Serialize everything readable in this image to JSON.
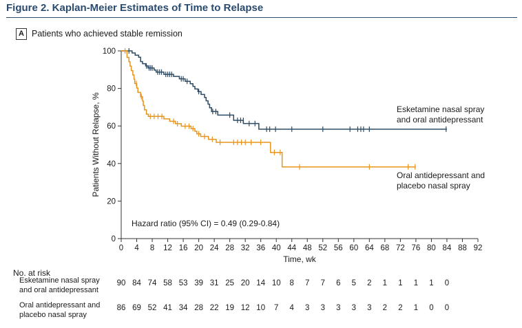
{
  "figure": {
    "title": "Figure 2. Kaplan-Meier Estimates of Time to Relapse",
    "panel_letter": "A",
    "panel_title": "Patients who achieved stable remission"
  },
  "chart_data": {
    "type": "line",
    "subtype": "kaplan-meier",
    "xlabel": "Time, wk",
    "ylabel": "Patients Without Relapse, %",
    "xlim": [
      0,
      92
    ],
    "ylim": [
      0,
      100
    ],
    "xticks": [
      0,
      4,
      8,
      12,
      16,
      20,
      24,
      28,
      32,
      36,
      40,
      44,
      48,
      52,
      56,
      60,
      64,
      68,
      72,
      76,
      80,
      84,
      88,
      92
    ],
    "yticks": [
      0,
      20,
      40,
      60,
      80,
      100
    ],
    "annotation": "Hazard ratio (95% CI) = 0.49 (0.29-0.84)",
    "series": [
      {
        "name": "Esketamine nasal spray and oral antidepressant",
        "label_lines": [
          "Esketamine nasal spray",
          "and oral antidepressant"
        ],
        "color": "#2c4a63",
        "steps": [
          [
            0,
            100
          ],
          [
            2.8,
            98.9
          ],
          [
            3.6,
            97.7
          ],
          [
            4.5,
            96.6
          ],
          [
            5.0,
            94.3
          ],
          [
            5.5,
            93.2
          ],
          [
            6.3,
            92.0
          ],
          [
            6.9,
            90.9
          ],
          [
            8.5,
            89.8
          ],
          [
            9.0,
            88.7
          ],
          [
            11.0,
            87.5
          ],
          [
            13.5,
            86.4
          ],
          [
            15.0,
            85.1
          ],
          [
            16.5,
            83.8
          ],
          [
            17.8,
            82.5
          ],
          [
            18.5,
            81.1
          ],
          [
            19.0,
            79.7
          ],
          [
            19.8,
            78.3
          ],
          [
            20.6,
            76.8
          ],
          [
            21.5,
            75.2
          ],
          [
            21.9,
            73.4
          ],
          [
            22.4,
            71.6
          ],
          [
            22.8,
            69.7
          ],
          [
            23.3,
            67.7
          ],
          [
            24.9,
            65.8
          ],
          [
            29.0,
            63.0
          ],
          [
            31.5,
            61.3
          ],
          [
            35.5,
            58.3
          ],
          [
            84,
            58.3
          ]
        ],
        "censors": [
          [
            2.0,
            100
          ],
          [
            6.5,
            92.0
          ],
          [
            7.2,
            90.9
          ],
          [
            7.6,
            90.9
          ],
          [
            8.0,
            90.9
          ],
          [
            9.4,
            88.7
          ],
          [
            9.9,
            88.7
          ],
          [
            10.4,
            88.7
          ],
          [
            11.5,
            87.5
          ],
          [
            12.0,
            87.5
          ],
          [
            12.5,
            87.5
          ],
          [
            13.0,
            87.5
          ],
          [
            15.5,
            85.1
          ],
          [
            16.0,
            85.1
          ],
          [
            17.0,
            83.8
          ],
          [
            20.0,
            78.3
          ],
          [
            23.6,
            67.7
          ],
          [
            24.4,
            67.7
          ],
          [
            28.0,
            65.8
          ],
          [
            30.0,
            63.0
          ],
          [
            30.8,
            63.0
          ],
          [
            31.5,
            63.0
          ],
          [
            33.0,
            61.3
          ],
          [
            34.5,
            61.3
          ],
          [
            37.5,
            58.3
          ],
          [
            38.3,
            58.3
          ],
          [
            39.8,
            58.3
          ],
          [
            44.0,
            58.3
          ],
          [
            52.0,
            58.3
          ],
          [
            59.0,
            58.3
          ],
          [
            61.0,
            58.3
          ],
          [
            61.8,
            58.3
          ],
          [
            62.5,
            58.3
          ],
          [
            64.0,
            58.3
          ],
          [
            83.8,
            58.3
          ]
        ],
        "risk": [
          90,
          84,
          74,
          58,
          53,
          39,
          31,
          25,
          20,
          14,
          10,
          8,
          7,
          7,
          6,
          5,
          2,
          1,
          1,
          1,
          1,
          0
        ]
      },
      {
        "name": "Oral antidepressant and placebo nasal spray",
        "label_lines": [
          "Oral antidepressant and",
          "placebo nasal spray"
        ],
        "color": "#e8941a",
        "steps": [
          [
            0,
            100
          ],
          [
            1.5,
            96.5
          ],
          [
            2.0,
            94.2
          ],
          [
            2.3,
            91.9
          ],
          [
            2.6,
            89.5
          ],
          [
            3.0,
            87.2
          ],
          [
            3.3,
            84.9
          ],
          [
            3.5,
            82.6
          ],
          [
            4.0,
            80.2
          ],
          [
            4.3,
            77.9
          ],
          [
            5.0,
            75.6
          ],
          [
            5.5,
            73.3
          ],
          [
            5.7,
            70.9
          ],
          [
            6.0,
            68.6
          ],
          [
            6.5,
            66.3
          ],
          [
            7.0,
            65.1
          ],
          [
            11.0,
            63.8
          ],
          [
            12.5,
            62.5
          ],
          [
            14.0,
            61.2
          ],
          [
            15.5,
            59.9
          ],
          [
            18.0,
            58.6
          ],
          [
            19.0,
            57.2
          ],
          [
            19.5,
            55.8
          ],
          [
            20.5,
            54.4
          ],
          [
            22.5,
            52.9
          ],
          [
            24.5,
            51.3
          ],
          [
            38.5,
            45.9
          ],
          [
            41.5,
            38.2
          ],
          [
            76,
            38.2
          ]
        ],
        "censors": [
          [
            1.0,
            100
          ],
          [
            3.9,
            82.6
          ],
          [
            5.2,
            75.6
          ],
          [
            7.5,
            65.1
          ],
          [
            8.5,
            65.1
          ],
          [
            9.5,
            65.1
          ],
          [
            10.5,
            65.1
          ],
          [
            13.5,
            62.5
          ],
          [
            14.5,
            61.2
          ],
          [
            16.5,
            59.9
          ],
          [
            17.5,
            59.9
          ],
          [
            18.5,
            58.6
          ],
          [
            20.0,
            55.8
          ],
          [
            21.5,
            54.4
          ],
          [
            23.5,
            52.9
          ],
          [
            25.5,
            51.3
          ],
          [
            29.0,
            51.3
          ],
          [
            30.0,
            51.3
          ],
          [
            31.0,
            51.3
          ],
          [
            32.0,
            51.3
          ],
          [
            33.5,
            51.3
          ],
          [
            36.0,
            51.3
          ],
          [
            39.5,
            45.9
          ],
          [
            41.0,
            45.9
          ],
          [
            46.0,
            38.2
          ],
          [
            64.0,
            38.2
          ],
          [
            74.0,
            38.2
          ],
          [
            75.8,
            38.2
          ]
        ],
        "risk": [
          86,
          69,
          52,
          41,
          34,
          28,
          22,
          19,
          12,
          10,
          7,
          4,
          3,
          3,
          3,
          3,
          3,
          2,
          2,
          1,
          0,
          0
        ]
      }
    ],
    "risk_table": {
      "header": "No. at risk",
      "times": [
        0,
        4,
        8,
        12,
        16,
        20,
        24,
        28,
        32,
        36,
        40,
        44,
        48,
        52,
        56,
        60,
        64,
        68,
        72,
        76,
        80,
        84
      ],
      "row_labels": [
        [
          "Esketamine nasal spray",
          "and oral antidepressant"
        ],
        [
          "Oral antidepressant and",
          "placebo nasal spray"
        ]
      ]
    }
  }
}
